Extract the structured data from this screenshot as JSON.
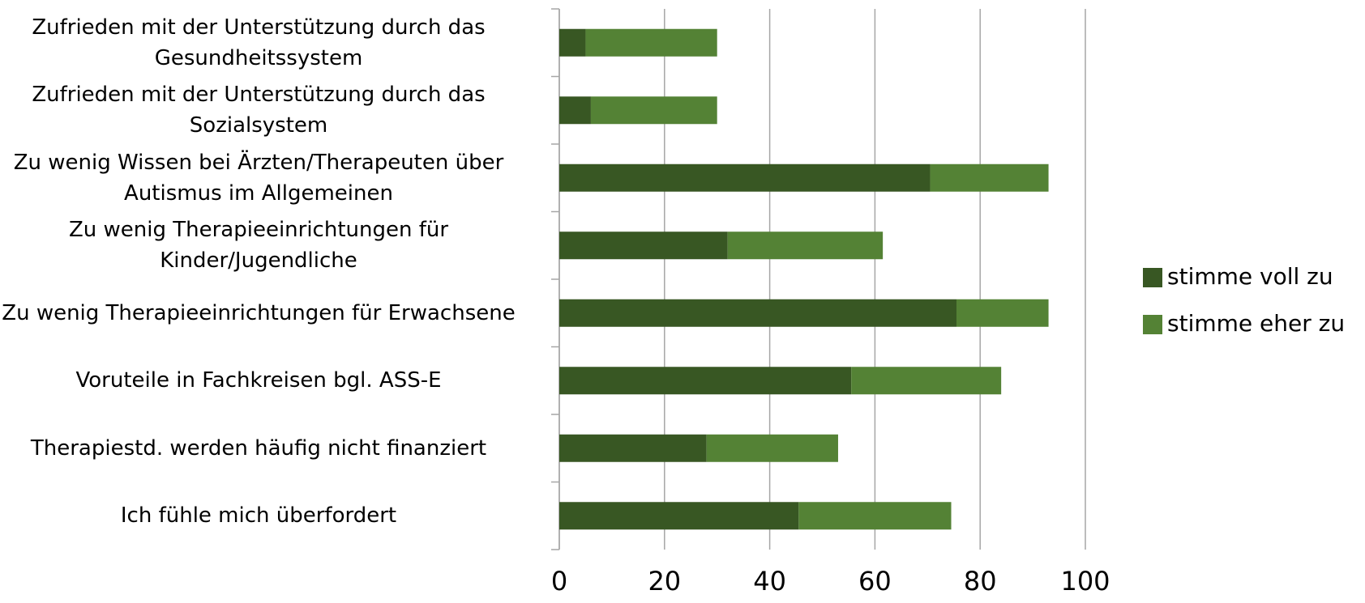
{
  "chart_data": {
    "type": "stacked_barh",
    "categories": [
      "Zufrieden mit der Unterstützung durch das\nGesundheitssystem",
      "Zufrieden mit der Unterstützung durch das\nSozialsystem",
      "Zu wenig Wissen bei Ärzten/Therapeuten über\nAutismus im Allgemeinen",
      "Zu wenig Therapieeinrichtungen für\nKinder/Jugendliche",
      "Zu wenig Therapieeinrichtungen für Erwachsene",
      "Voruteile in Fachkreisen bgl. ASS-E",
      "Therapiestd. werden häufig nicht finanziert",
      "Ich fühle mich überfordert"
    ],
    "series": [
      {
        "name": "stimme voll zu",
        "color": "#385723",
        "values": [
          5,
          6,
          70.5,
          32,
          75.5,
          55.5,
          28,
          45.5
        ]
      },
      {
        "name": "stimme eher zu",
        "color": "#548235",
        "values": [
          25,
          24,
          22.5,
          29.5,
          17.5,
          28.5,
          25,
          29
        ]
      }
    ],
    "xlim": [
      0,
      100
    ],
    "xticks": [
      0,
      20,
      40,
      60,
      80,
      100
    ],
    "grid": true,
    "legend": "right"
  }
}
